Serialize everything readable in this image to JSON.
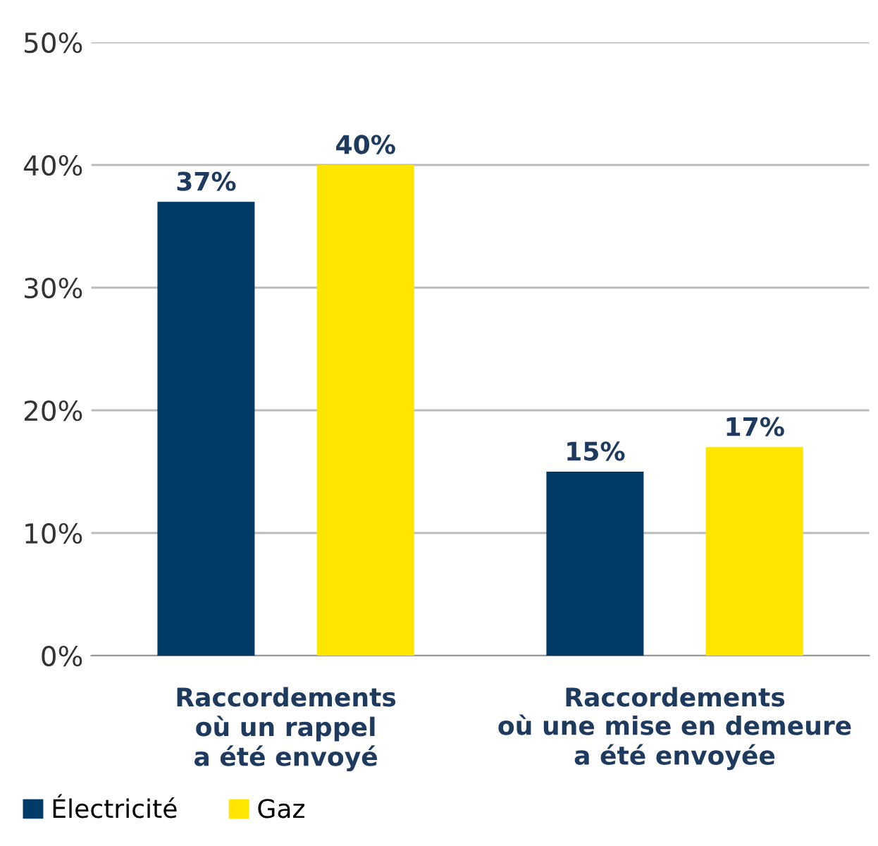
{
  "chart_data": {
    "type": "bar",
    "categories": [
      "Raccordements\noù un rappel\na été envoyé",
      "Raccordements\noù une mise en demeure\na été envoyée"
    ],
    "series": [
      {
        "name": "Électricité",
        "color": "#003a66",
        "values": [
          37,
          15
        ],
        "value_labels": [
          "37%",
          "15%"
        ]
      },
      {
        "name": "Gaz",
        "color": "#ffe600",
        "values": [
          40,
          17
        ],
        "value_labels": [
          "40%",
          "17%"
        ]
      }
    ],
    "ylim": [
      0,
      50
    ],
    "yticks": [
      {
        "value": 0,
        "label": "0%"
      },
      {
        "value": 10,
        "label": "10%"
      },
      {
        "value": 20,
        "label": "20%"
      },
      {
        "value": 30,
        "label": "30%"
      },
      {
        "value": 40,
        "label": "40%"
      },
      {
        "value": 50,
        "label": "50%"
      }
    ],
    "grid": "y",
    "legend": "bottom left"
  }
}
